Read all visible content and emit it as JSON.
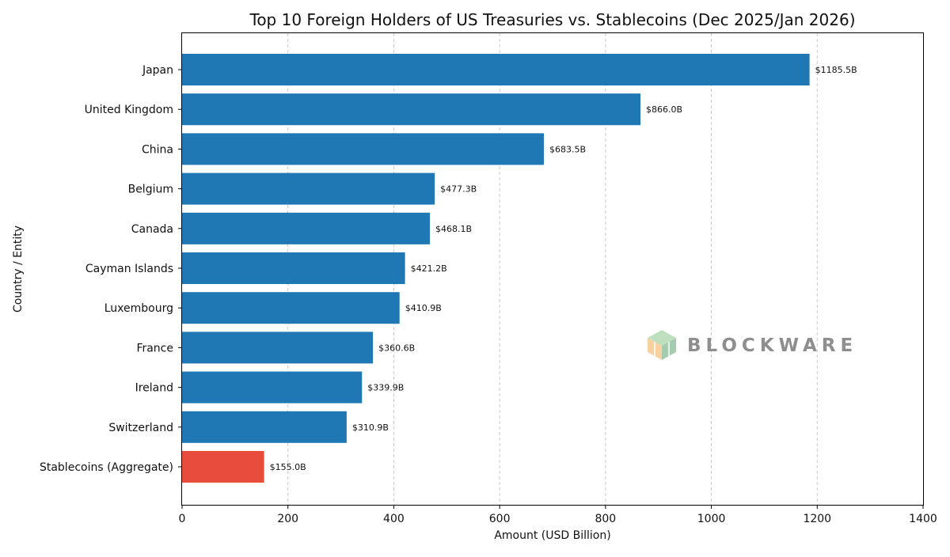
{
  "chart_data": {
    "type": "bar",
    "orientation": "horizontal",
    "title": "Top 10 Foreign Holders of US Treasuries vs. Stablecoins (Dec 2025/Jan 2026)",
    "xlabel": "Amount (USD Billion)",
    "ylabel": "Country / Entity",
    "xlim": [
      0,
      1400
    ],
    "xticks": [
      0,
      200,
      400,
      600,
      800,
      1000,
      1200,
      1400
    ],
    "grid": "x-dashed",
    "legend": "none",
    "categories": [
      "Japan",
      "United Kingdom",
      "China",
      "Belgium",
      "Canada",
      "Cayman Islands",
      "Luxembourg",
      "France",
      "Ireland",
      "Switzerland",
      "Stablecoins (Aggregate)"
    ],
    "values": [
      1185.5,
      866.0,
      683.5,
      477.3,
      468.1,
      421.2,
      410.9,
      360.6,
      339.9,
      310.9,
      155.0
    ],
    "data_labels": [
      "$1185.5B",
      "$866.0B",
      "$683.5B",
      "$477.3B",
      "$468.1B",
      "$421.2B",
      "$410.9B",
      "$360.6B",
      "$339.9B",
      "$310.9B",
      "$155.0B"
    ],
    "colors": {
      "default_bar": "#1f77b4",
      "highlight_bar": "#e74c3c",
      "highlight_index": 10
    }
  },
  "watermark": {
    "text": "BLOCKWARE",
    "icon": "cube-logo-icon"
  }
}
